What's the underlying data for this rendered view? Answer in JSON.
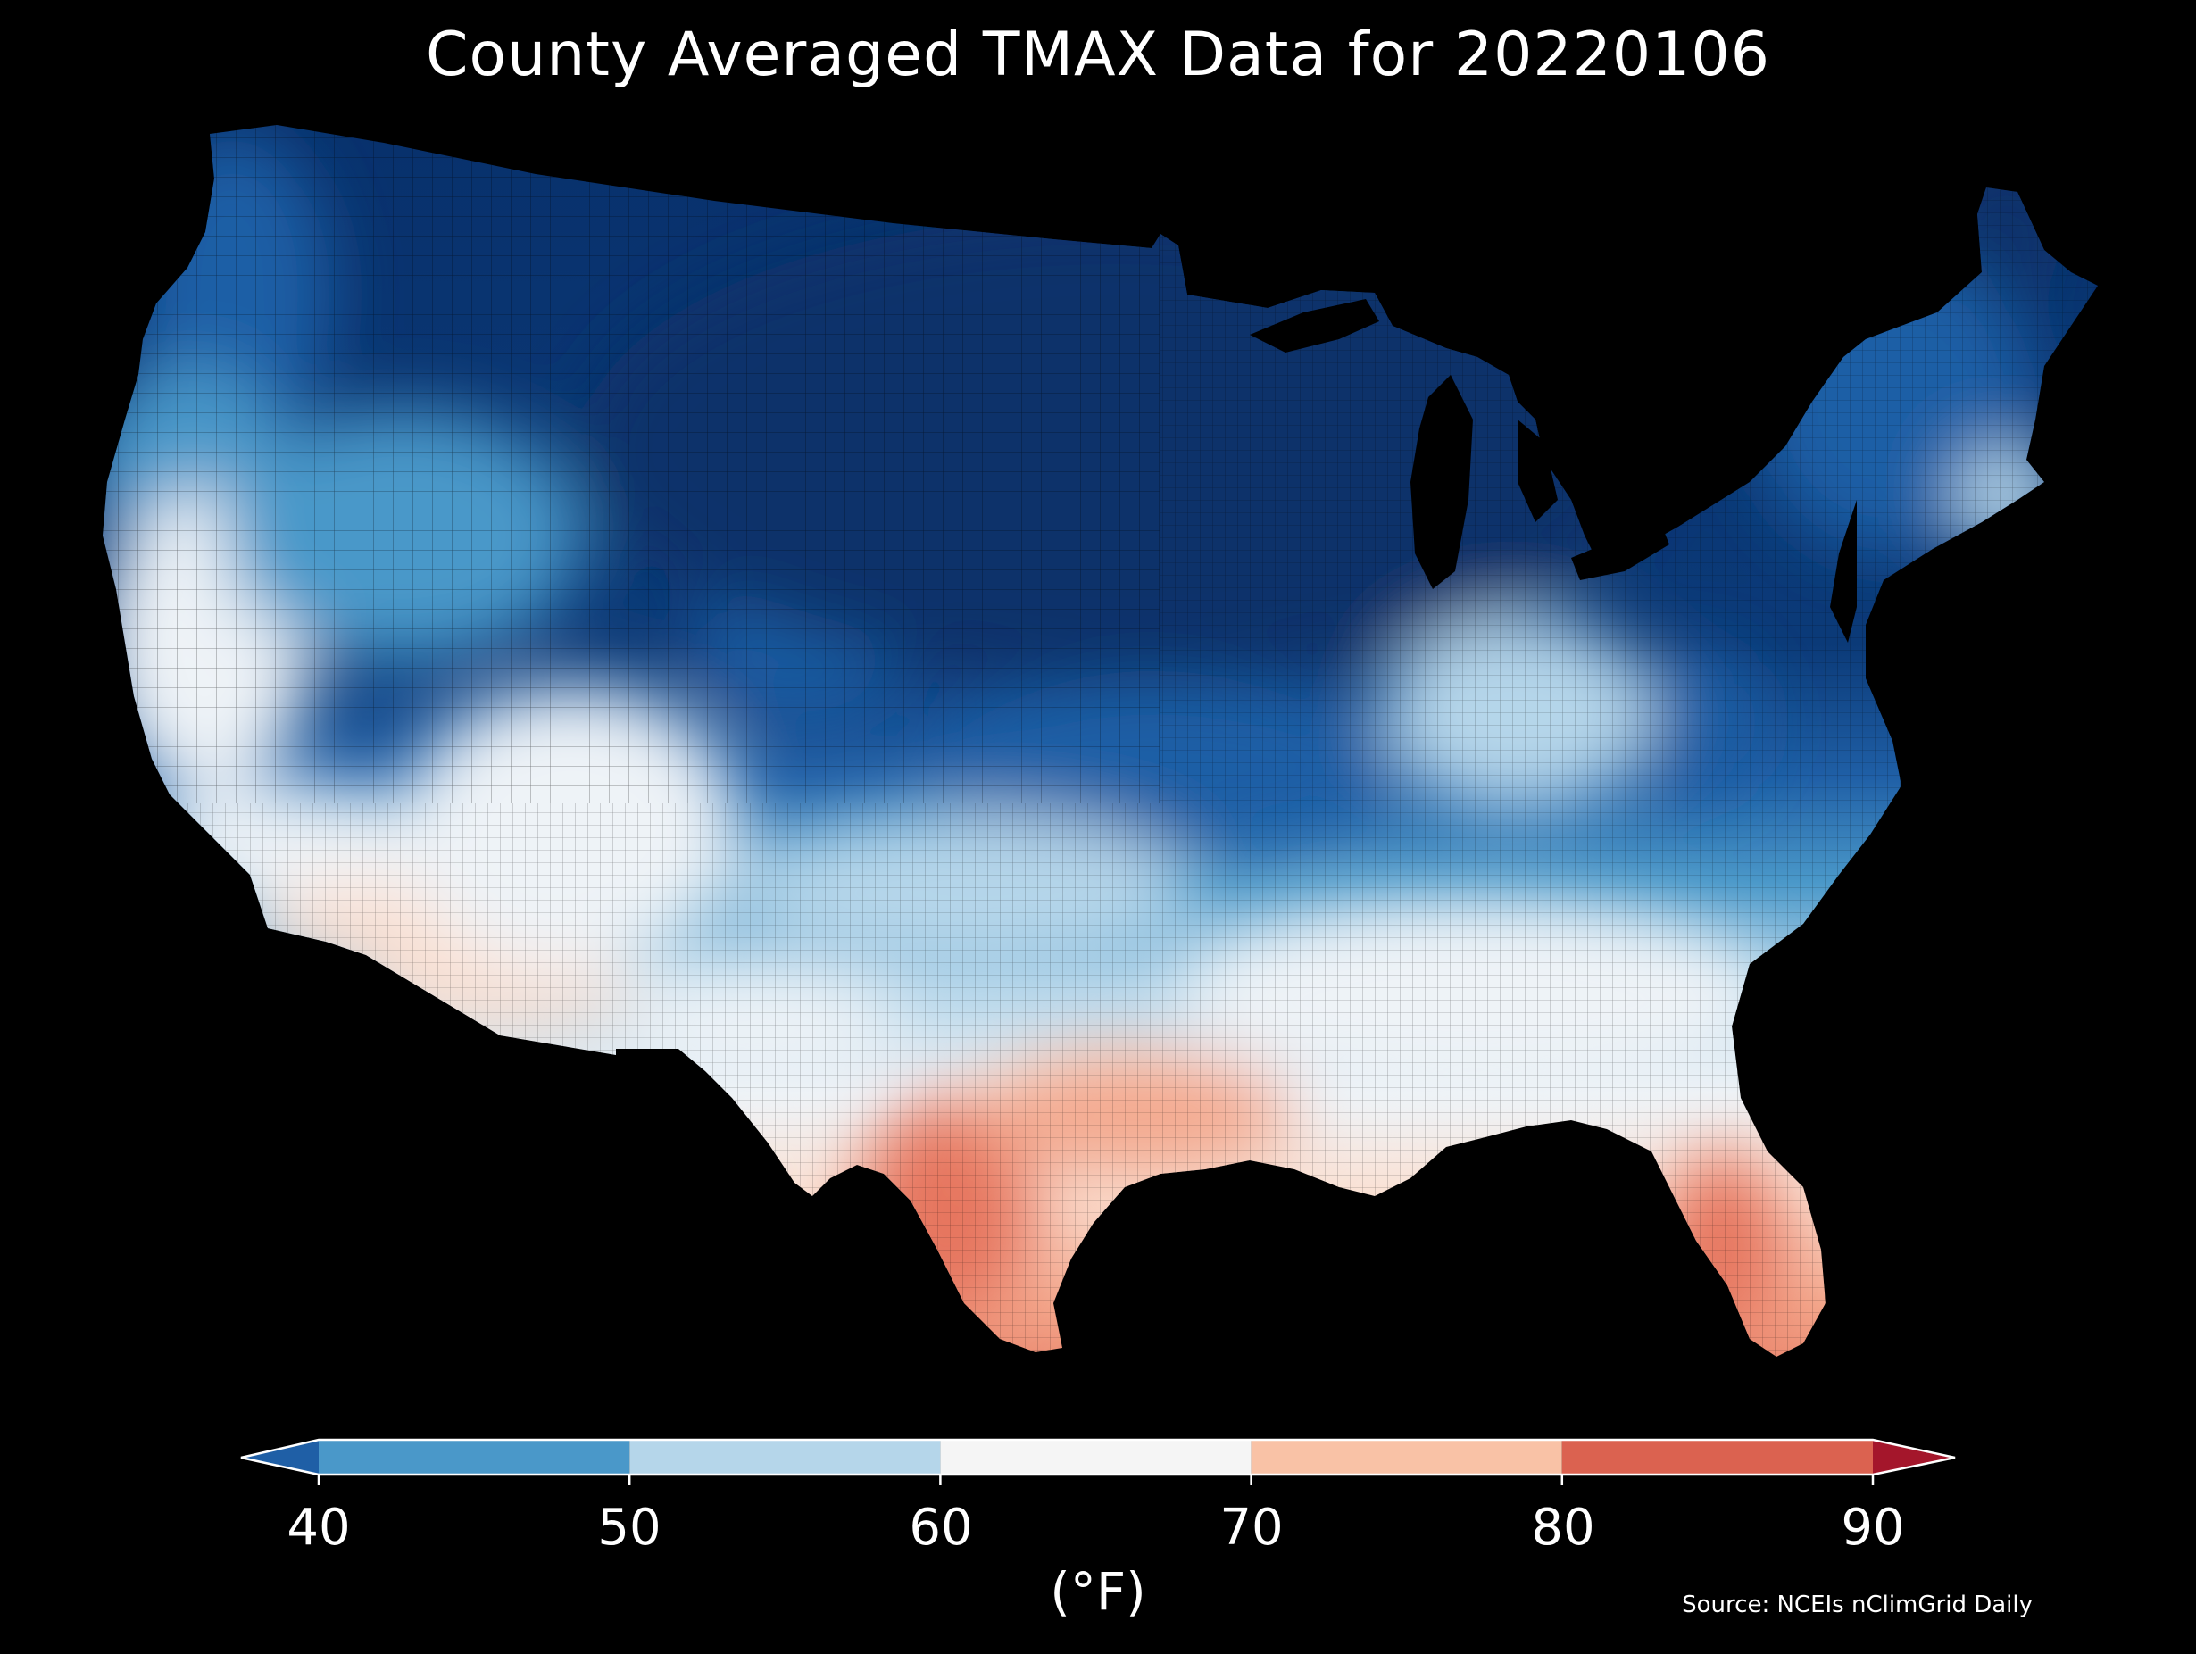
{
  "map": {
    "title": "County Averaged TMAX Data for 20220106",
    "region": "Contiguous United States",
    "background_color": "#000000",
    "unit": "(°F)",
    "source": "Source: NCEIs nClimGrid Daily"
  },
  "colorbar": {
    "ticks": [
      "40",
      "50",
      "60",
      "70",
      "80",
      "90"
    ],
    "under_color": "#1f5fa6",
    "over_color": "#a4162b",
    "bins": [
      {
        "min": 40,
        "max": 50,
        "color": "#4a98c9"
      },
      {
        "min": 50,
        "max": 60,
        "color": "#b5d6ea"
      },
      {
        "min": 60,
        "max": 70,
        "color": "#f5f5f5"
      },
      {
        "min": 70,
        "max": 80,
        "color": "#f9c2a6"
      },
      {
        "min": 80,
        "max": 90,
        "color": "#db6250"
      }
    ],
    "extend": "both"
  },
  "colors": {
    "very_cold": "#08306b",
    "cold": "#1f5fa6",
    "cool": "#4a98c9",
    "mild": "#b5d6ea",
    "neutral": "#eef3f7",
    "warm": "#fbe0d2",
    "warmer": "#f4a98e",
    "hot": "#e6765e"
  }
}
